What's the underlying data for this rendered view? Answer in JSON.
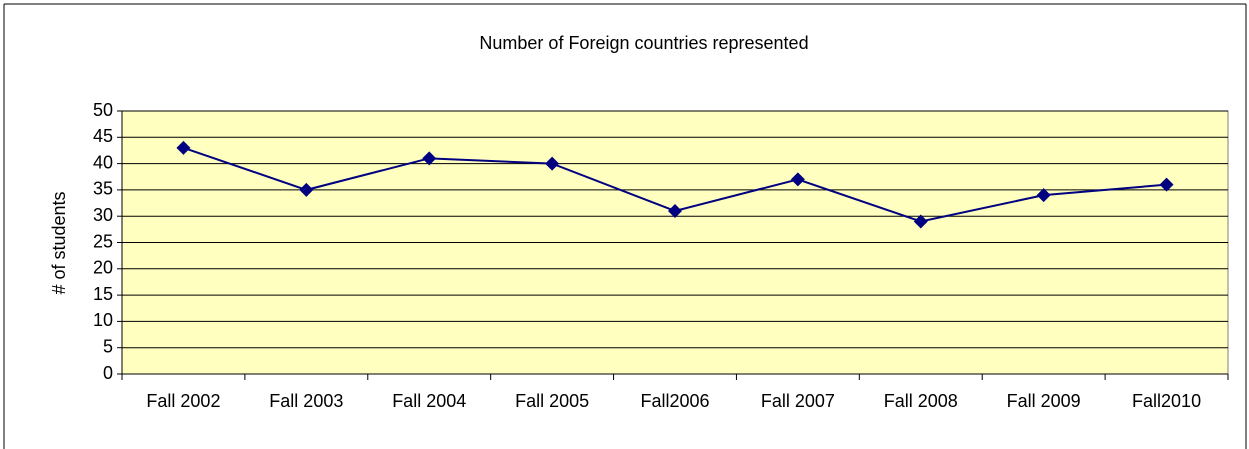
{
  "chart_data": {
    "type": "line",
    "title": "Number of Foreign countries represented",
    "ylabel": "# of students",
    "categories": [
      "Fall 2002",
      "Fall 2003",
      "Fall 2004",
      "Fall 2005",
      "Fall2006",
      "Fall 2007",
      "Fall 2008",
      "Fall 2009",
      "Fall2010"
    ],
    "values": [
      43,
      35,
      41,
      40,
      31,
      37,
      29,
      34,
      36
    ],
    "color": "#000080",
    "plot_background": "#ffffc0",
    "ylim": [
      0,
      50
    ],
    "yticks": [
      0,
      5,
      10,
      15,
      20,
      25,
      30,
      35,
      40,
      45,
      50
    ],
    "grid": true
  }
}
